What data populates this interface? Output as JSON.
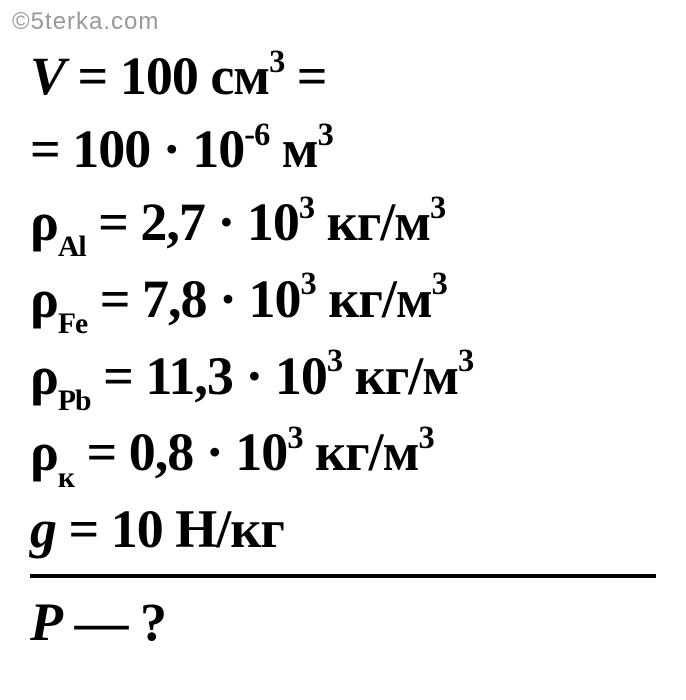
{
  "watermark": "©5terka.com",
  "lines": {
    "l1_var": "V",
    "l1_eq": " = ",
    "l1_val": "100",
    "l1_unit": " см",
    "l1_sup": "3",
    "l1_tail": " =",
    "l2_eq": "= ",
    "l2_val": "100 · 10",
    "l2_sup": "-6",
    "l2_unit": " м",
    "l2_sup2": "3",
    "l3_var": "ρ",
    "l3_sub": "Al",
    "l3_eq": " = ",
    "l3_val": "2,7 · 10",
    "l3_sup": "3",
    "l3_unit": " кг/м",
    "l3_sup2": "3",
    "l4_var": "ρ",
    "l4_sub": "Fe",
    "l4_eq": " = ",
    "l4_val": "7,8 · 10",
    "l4_sup": "3",
    "l4_unit": " кг/м",
    "l4_sup2": "3",
    "l5_var": "ρ",
    "l5_sub": "Pb",
    "l5_eq": " = ",
    "l5_val": "11,3 · 10",
    "l5_sup": "3",
    "l5_unit": " кг/м",
    "l5_sup2": "3",
    "l6_var": "ρ",
    "l6_sub": "к",
    "l6_eq": " = ",
    "l6_val": "0,8 · 10",
    "l6_sup": "3",
    "l6_unit": " кг/м",
    "l6_sup2": "3",
    "l7_var": "g",
    "l7_eq": " = ",
    "l7_val": "10",
    "l7_unit": " Н/кг",
    "l8_var": "P",
    "l8_dash": " — ",
    "l8_q": "?"
  },
  "style": {
    "font_size": 54,
    "font_weight": 900,
    "font_style": "italic",
    "color": "#000000",
    "watermark_color": "#999999",
    "background": "#ffffff",
    "divider_color": "#000000",
    "divider_width": 4
  }
}
